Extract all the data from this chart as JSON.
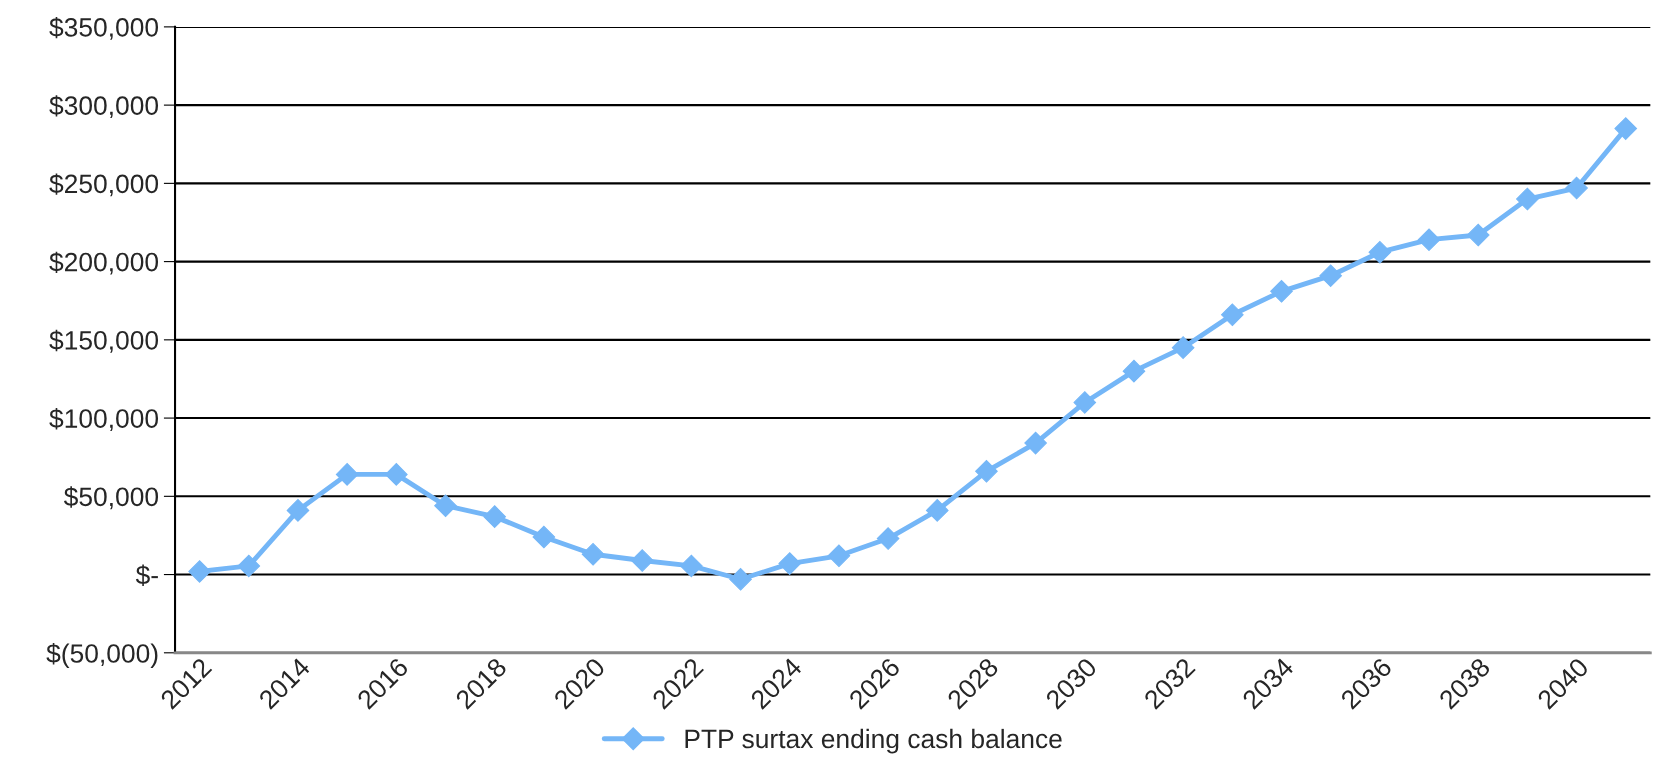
{
  "chart_data": {
    "type": "line",
    "categories": [
      "2012",
      null,
      "2014",
      null,
      "2016",
      null,
      "2018",
      null,
      "2020",
      null,
      "2022",
      null,
      "2024",
      null,
      "2026",
      null,
      "2028",
      null,
      "2030",
      null,
      "2032",
      null,
      "2034",
      null,
      "2036",
      null,
      "2038",
      null,
      "2040",
      null
    ],
    "series": [
      {
        "name": "PTP surtax ending cash balance",
        "color": "#74b6f7",
        "values": [
          2000,
          5500,
          41000,
          64000,
          64000,
          44000,
          37000,
          24000,
          13000,
          9000,
          5500,
          -3000,
          7000,
          12000,
          23000,
          41000,
          66000,
          84000,
          110000,
          130000,
          145000,
          166000,
          181000,
          191000,
          206000,
          214000,
          217000,
          240000,
          247000,
          285000
        ]
      }
    ],
    "ylim": [
      -50000,
      350000
    ],
    "yticks": [
      {
        "value": -50000,
        "label": "$(50,000)"
      },
      {
        "value": 0,
        "label": "$-"
      },
      {
        "value": 50000,
        "label": "$50,000"
      },
      {
        "value": 100000,
        "label": "$100,000"
      },
      {
        "value": 150000,
        "label": "$150,000"
      },
      {
        "value": 200000,
        "label": "$200,000"
      },
      {
        "value": 250000,
        "label": "$250,000"
      },
      {
        "value": 300000,
        "label": "$300,000"
      },
      {
        "value": 350000,
        "label": "$350,000"
      }
    ],
    "grid": "y",
    "legend": "bottom",
    "marker": "diamond",
    "line_style": "solid"
  }
}
